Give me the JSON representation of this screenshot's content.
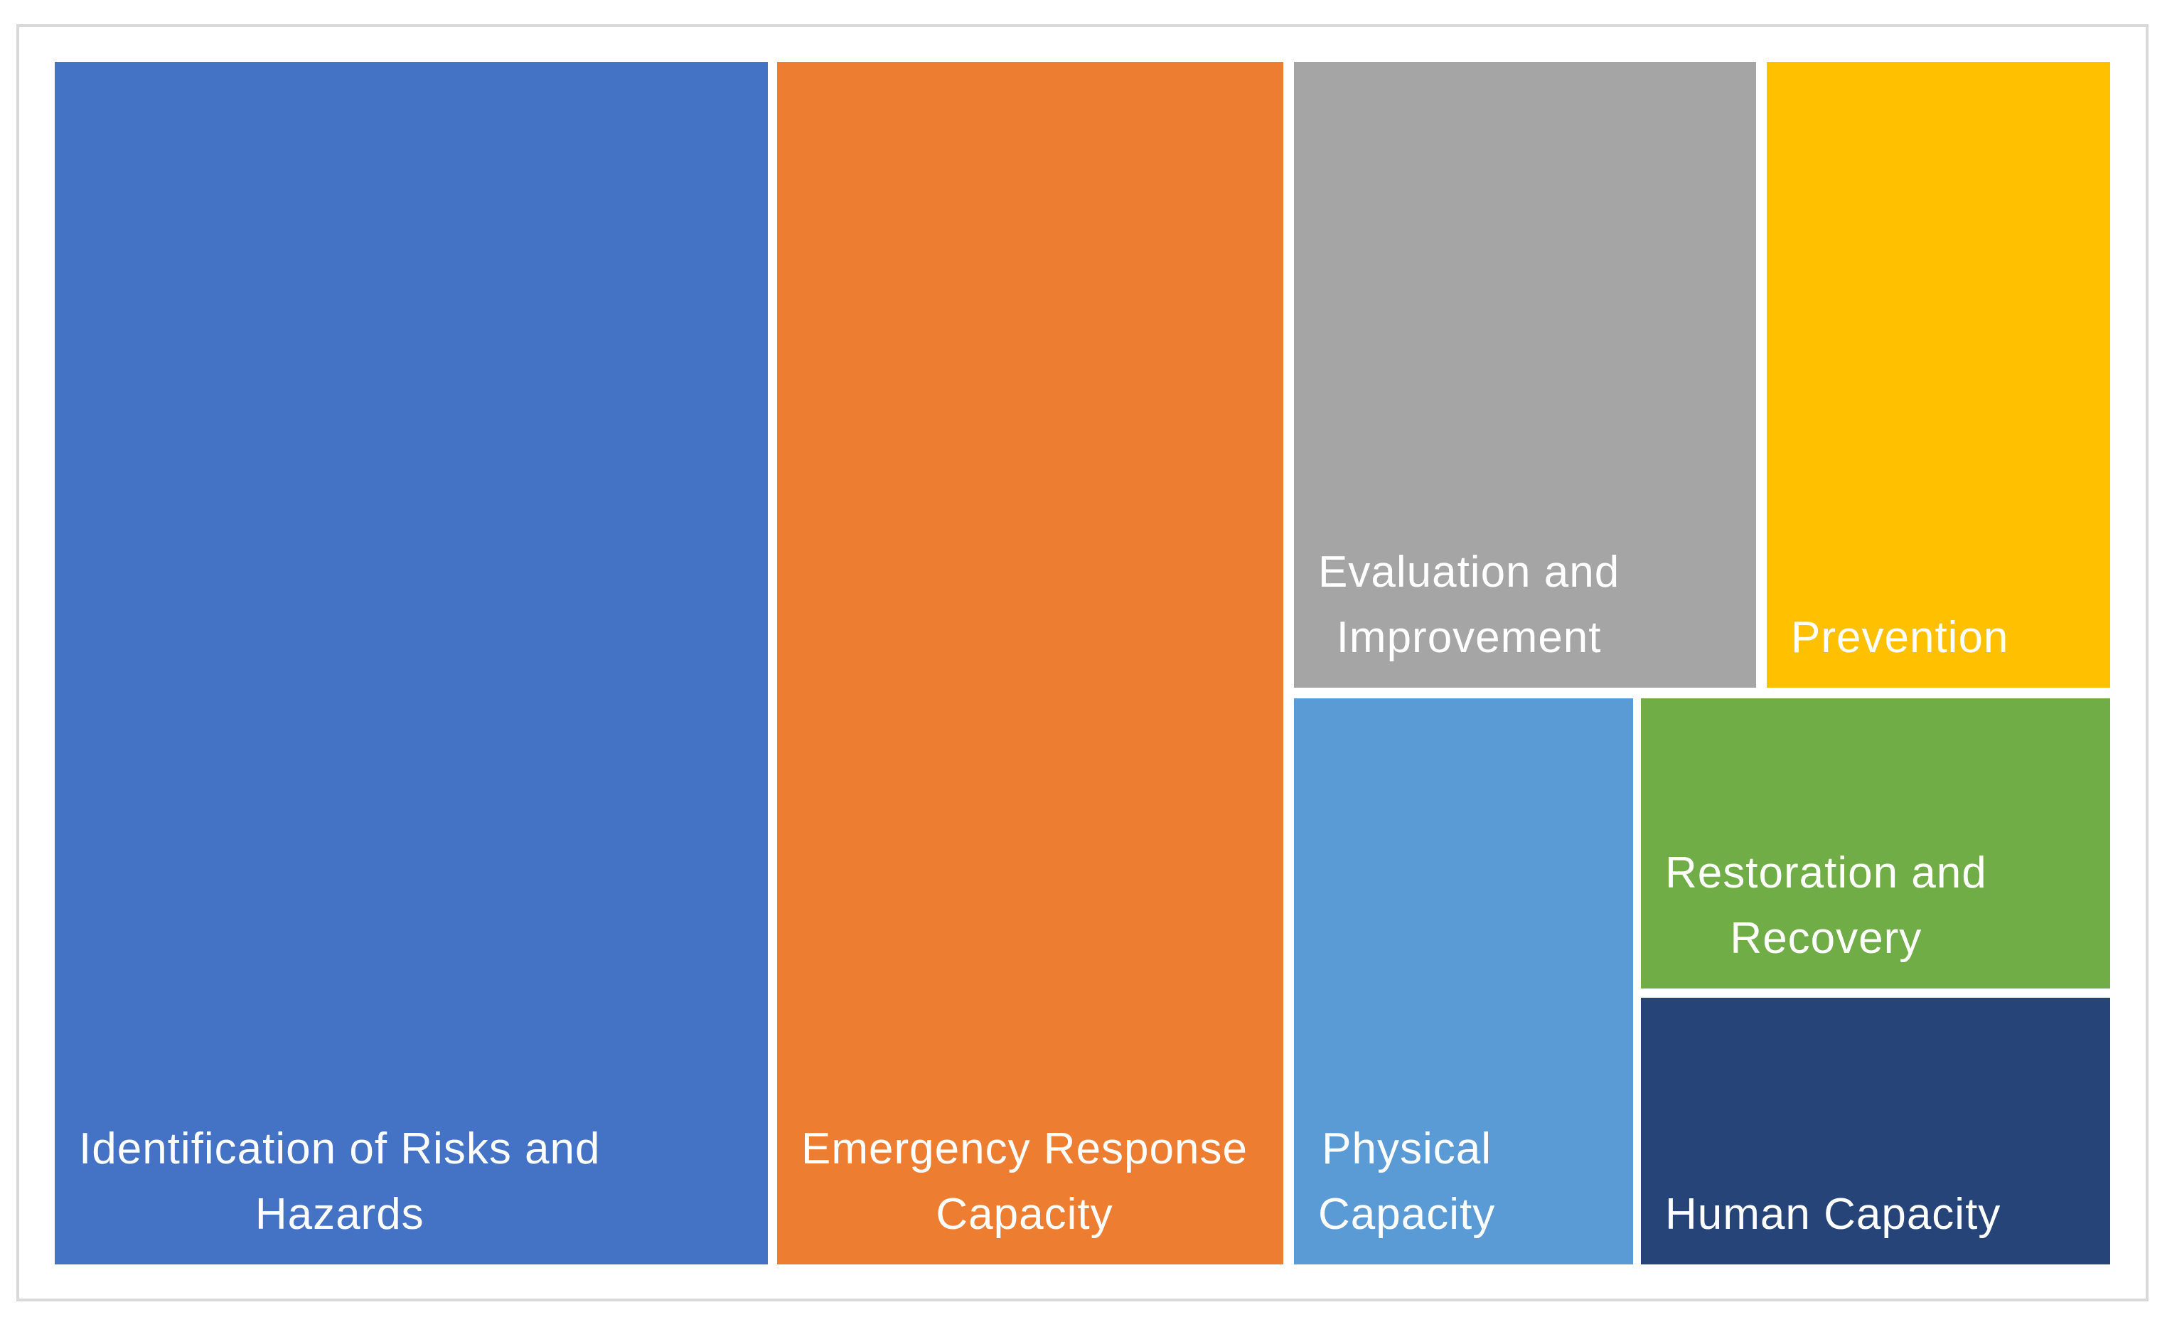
{
  "page": {
    "background": "#FFFFFF"
  },
  "chart_frame": {
    "border_color": "#D9D9D9"
  },
  "chart_data": {
    "type": "treemap",
    "legend": false,
    "values_shown": false,
    "label_color": "#FFFFFF",
    "items": [
      {
        "label": "Identification of Risks and Hazards",
        "display_label": "Identification of Risks and\nHazards",
        "color": "#4472C4",
        "estimated_area_pct": 35
      },
      {
        "label": "Emergency Response Capacity",
        "display_label": "Emergency Response\nCapacity",
        "color": "#ED7D31",
        "estimated_area_pct": 25
      },
      {
        "label": "Evaluation and Improvement",
        "display_label": "Evaluation and\nImprovement",
        "color": "#A5A5A5",
        "estimated_area_pct": 12
      },
      {
        "label": "Prevention",
        "display_label": "Prevention",
        "color": "#FFC000",
        "estimated_area_pct": 9
      },
      {
        "label": "Physical Capacity",
        "display_label": "Physical\nCapacity",
        "color": "#5B9BD5",
        "estimated_area_pct": 8
      },
      {
        "label": "Restoration and Recovery",
        "display_label": "Restoration and\nRecovery",
        "color": "#70AD47",
        "estimated_area_pct": 6
      },
      {
        "label": "Human Capacity",
        "display_label": "Human Capacity",
        "color": "#264478",
        "estimated_area_pct": 5
      }
    ]
  }
}
